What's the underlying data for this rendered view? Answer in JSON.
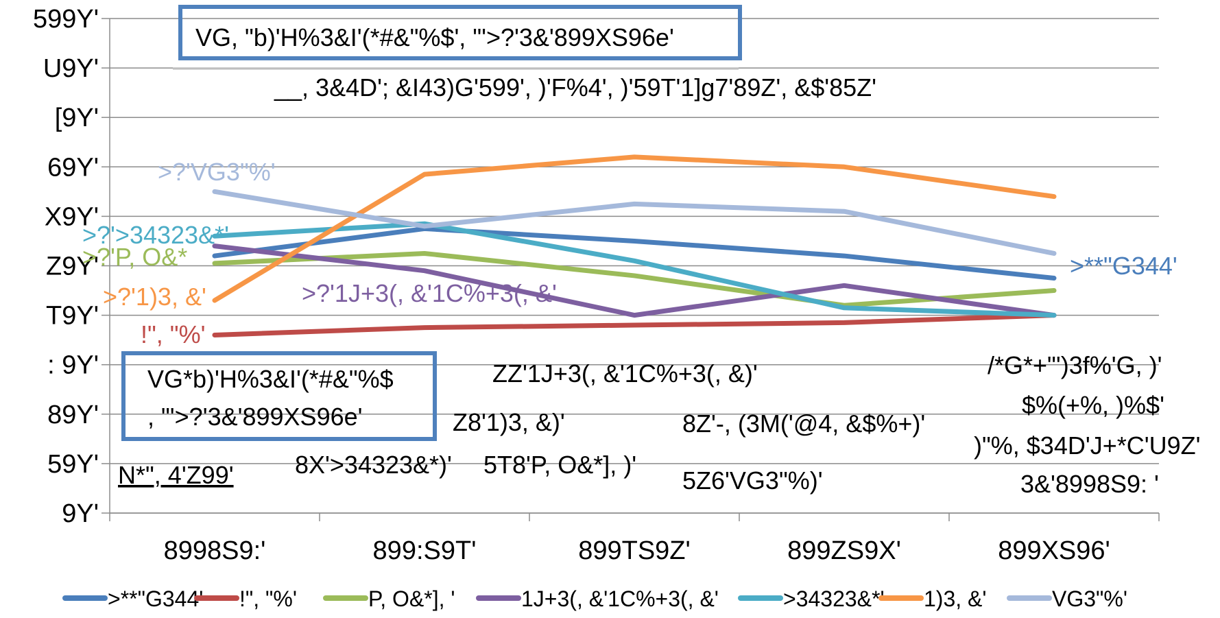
{
  "chart_data": {
    "type": "line",
    "categories": [
      "8998S9:'",
      "899:S9T'",
      "899TS9Z'",
      "899ZS9X'",
      "899XS96'"
    ],
    "y_ticks": [
      "599Y'",
      "U9Y'",
      "[9Y'",
      "69Y'",
      "X9Y'",
      "Z9Y'",
      "T9Y'",
      ": 9Y'",
      "89Y'",
      "59Y'",
      "9Y'"
    ],
    "ylim": [
      0,
      100
    ],
    "grid": true,
    "legend_position": "bottom",
    "series": [
      {
        "name": ">**\"G344'",
        "color": "#4a7ebb",
        "values": [
          52,
          57.5,
          55,
          52,
          47.5
        ],
        "label": ">**\"G344'"
      },
      {
        "name": "!\", \"%'",
        "color": "#be4b48",
        "values": [
          36,
          37.5,
          38,
          38.5,
          40
        ],
        "label": "!\", \"%'"
      },
      {
        "name": "P, O&*], '",
        "color": "#9bbb59",
        "values": [
          50.5,
          52.5,
          48,
          42,
          45
        ],
        "label": ">?'P, O&*"
      },
      {
        "name": "1J+3(, &'1C%+3(, &'",
        "color": "#7d5fa0",
        "values": [
          54,
          49,
          40,
          46,
          40
        ],
        "label": ">?'1J+3(, &'1C%+3(, &'"
      },
      {
        "name": ">34323&*'",
        "color": "#4bacc6",
        "values": [
          56,
          58.5,
          51,
          41.5,
          40
        ],
        "label": ">?'>34323&*'"
      },
      {
        "name": "1)3, &'",
        "color": "#f79646",
        "values": [
          43,
          68.5,
          72,
          70,
          64
        ],
        "label": ">?'1)3, &'"
      },
      {
        "name": "VG3\"%'",
        "color": "#a5b9db",
        "values": [
          65,
          58,
          62.5,
          61,
          52.5
        ],
        "label": ">?'VG3\"%'"
      }
    ]
  },
  "boxes": {
    "top": "VG, \"b)'H%3&I'(*#&\"%$', \"'>?'3&'899XS96e'",
    "bottom_line1": "VG*b)'H%3&I'(*#&\"%$",
    "bottom_line2": ", \"'>?'3&'899XS96e'"
  },
  "annotations": {
    "top_note": "__, 3&4D'; &I43)G'599', )'F%4', )'59T'1]g7'89Z', &$'85Z'",
    "base_note": "N*\", 4'Z99'",
    "zz_note": "ZZ'1J+3(, &'1C%+3(, &)'",
    "z8_note": "Z8'1)3, &)'",
    "z8b_note": "8Z'-, (3M('@4, &$%+)'",
    "x8_note": "8X'>34323&*)'",
    "t8_note": "5T8'P, O&*], )'",
    "z6_note": "5Z6'VG3\"%)'",
    "right1": "/*G*+\"')3f%'G, )'",
    "right2": "$%(+%, )%$'",
    "right3": ")\"%, $34D'J+*C'U9Z'",
    "right4": "3&'8998S9: '"
  }
}
